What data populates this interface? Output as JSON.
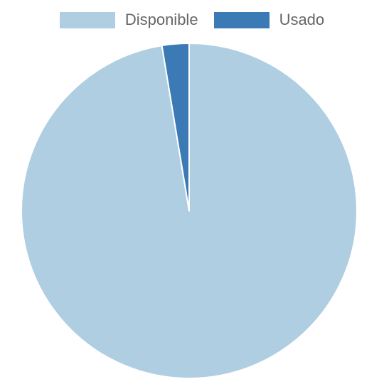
{
  "chart_data": {
    "type": "pie",
    "title": "",
    "legend_position": "top",
    "series": [
      {
        "name": "Disponible",
        "value": 97.4,
        "color": "#afcee1"
      },
      {
        "name": "Usado",
        "value": 2.6,
        "color": "#3b7ab5"
      }
    ]
  }
}
